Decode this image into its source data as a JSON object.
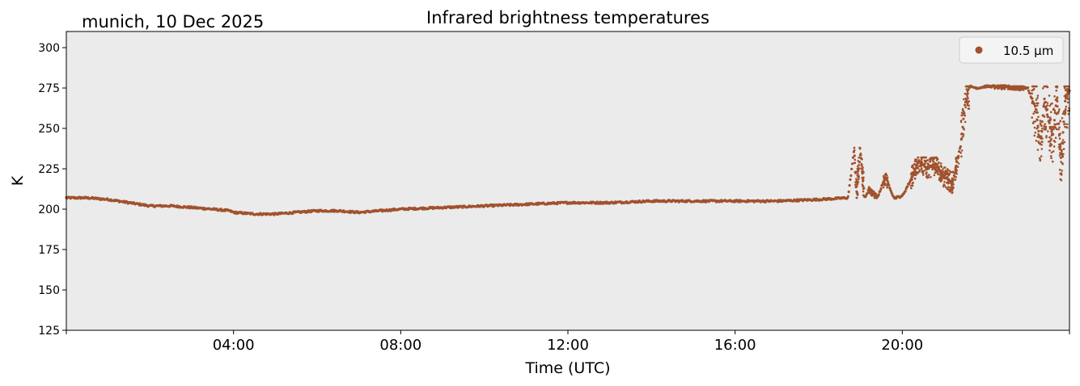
{
  "chart_data": {
    "type": "scatter",
    "title": "Infrared brightness temperatures",
    "subtitle": "munich, 10 Dec 2025",
    "xlabel": "Time (UTC)",
    "ylabel": "K",
    "xlim": [
      0,
      24
    ],
    "ylim": [
      125,
      310
    ],
    "x_tick_values": [
      4,
      8,
      12,
      16,
      20
    ],
    "x_tick_labels": [
      "04:00",
      "08:00",
      "12:00",
      "16:00",
      "20:00"
    ],
    "y_ticks": [
      125,
      150,
      175,
      200,
      225,
      250,
      275,
      300
    ],
    "legend_location": "top-right",
    "grid": false,
    "background": "#ebebeb",
    "series": [
      {
        "name": "10.5 µm",
        "color": "#a0522d",
        "x": [
          0.0,
          0.5,
          1.0,
          1.5,
          2.0,
          2.5,
          3.0,
          3.5,
          3.9,
          4.0,
          4.5,
          5.0,
          5.5,
          6.0,
          6.5,
          7.0,
          7.5,
          8.0,
          9.0,
          10.0,
          11.0,
          12.0,
          13.0,
          14.0,
          15.0,
          16.0,
          17.0,
          18.0,
          18.7,
          18.85,
          18.9,
          19.0,
          19.1,
          19.2,
          19.4,
          19.6,
          19.8,
          20.0,
          20.2,
          20.4,
          20.6,
          20.8,
          21.0,
          21.2,
          21.4,
          21.5,
          21.6,
          21.8,
          22.0,
          22.5,
          23.0,
          23.2,
          23.3,
          23.4,
          23.5,
          23.6,
          23.7,
          23.8,
          23.9,
          24.0
        ],
        "y": [
          207,
          207,
          206,
          204,
          202,
          202,
          201,
          200,
          199,
          198,
          197,
          197,
          198,
          199,
          199,
          198,
          199,
          200,
          201,
          202,
          203,
          204,
          204,
          205,
          205,
          205,
          205,
          206,
          207,
          237,
          209,
          235,
          207,
          212,
          207,
          220,
          207,
          208,
          218,
          230,
          225,
          228,
          220,
          216,
          240,
          265,
          276,
          275,
          276,
          276,
          275,
          262,
          240,
          268,
          255,
          245,
          270,
          230,
          268,
          273
        ],
        "bursts": [
          {
            "x": [
              18.85,
              19.1
            ],
            "range": [
              207,
              238
            ]
          },
          {
            "x": [
              19.2,
              19.4
            ],
            "range": [
              207,
              214
            ]
          },
          {
            "x": [
              19.55,
              19.65
            ],
            "range": [
              207,
              222
            ]
          },
          {
            "x": [
              20.2,
              21.35
            ],
            "range": [
              210,
              232
            ]
          },
          {
            "x": [
              21.4,
              21.6
            ],
            "range": [
              230,
              276
            ]
          },
          {
            "x": [
              22.2,
              22.9
            ],
            "range": [
              270,
              276
            ]
          },
          {
            "x": [
              23.1,
              24.0
            ],
            "range": [
              210,
              276
            ]
          }
        ]
      }
    ]
  }
}
